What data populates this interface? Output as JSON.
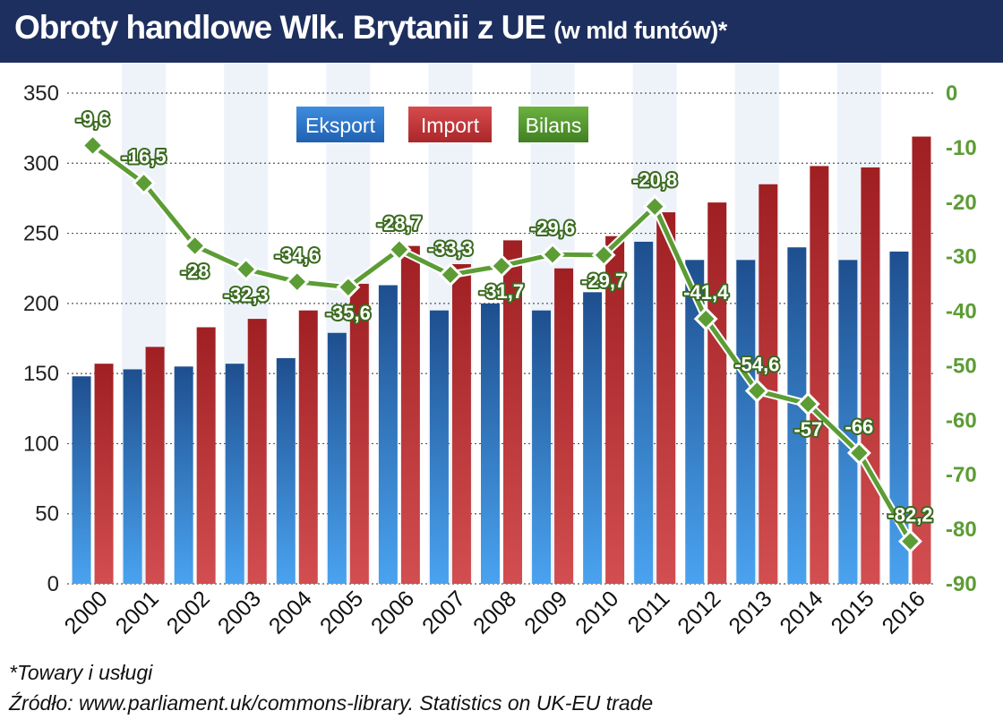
{
  "header": {
    "title": "Obroty handlowe Wlk. Brytanii z UE",
    "subtitle": "(w mld funtów)*"
  },
  "colors": {
    "header_bg": "#1d2f5e",
    "export": "#2f73c4",
    "import": "#c0393b",
    "balance": "#5c9c35"
  },
  "chart_data": {
    "type": "bar",
    "categories": [
      "2000",
      "2001",
      "2002",
      "2003",
      "2004",
      "2005",
      "2006",
      "2007",
      "2008",
      "2009",
      "2010",
      "2011",
      "2012",
      "2013",
      "2014",
      "2015",
      "2016"
    ],
    "series": [
      {
        "name": "Eksport",
        "type": "bar",
        "axis": "left",
        "values": [
          148,
          153,
          155,
          157,
          161,
          179,
          213,
          195,
          200,
          195,
          208,
          244,
          231,
          231,
          240,
          231,
          237
        ]
      },
      {
        "name": "Import",
        "type": "bar",
        "axis": "left",
        "values": [
          157,
          169,
          183,
          189,
          195,
          214,
          241,
          228,
          245,
          225,
          248,
          265,
          272,
          285,
          298,
          297,
          319
        ]
      },
      {
        "name": "Bilans",
        "type": "line",
        "axis": "right",
        "values": [
          -9.6,
          -16.5,
          -28,
          -32.3,
          -34.6,
          -35.6,
          -28.7,
          -33.3,
          -31.7,
          -29.6,
          -29.7,
          -20.8,
          -41.4,
          -54.6,
          -57,
          -66,
          -82.2
        ],
        "labels": [
          "-9,6",
          "-16,5",
          "-28",
          "-32,3",
          "-34,6",
          "-35,6",
          "-28,7",
          "-33,3",
          "-31,7",
          "-29,6",
          "-29,7",
          "-20,8",
          "-41,4",
          "-54,6",
          "-57",
          "-66",
          "-82,2"
        ]
      }
    ],
    "ylim_left": [
      0,
      350
    ],
    "yticks_left": [
      "0",
      "50",
      "100",
      "150",
      "200",
      "250",
      "300",
      "350"
    ],
    "ylim_right": [
      -90,
      0
    ],
    "yticks_right": [
      "-90",
      "-80",
      "-70",
      "-60",
      "-50",
      "-40",
      "-30",
      "-20",
      "-10",
      "0"
    ],
    "legend": [
      "Eksport",
      "Import",
      "Bilans"
    ],
    "legend_position": "top-left",
    "grid": "horizontal dashed"
  },
  "footer": {
    "note": "*Towary i usługi",
    "source": "Źródło: www.parliament.uk/commons-library. Statistics on UK-EU trade"
  }
}
